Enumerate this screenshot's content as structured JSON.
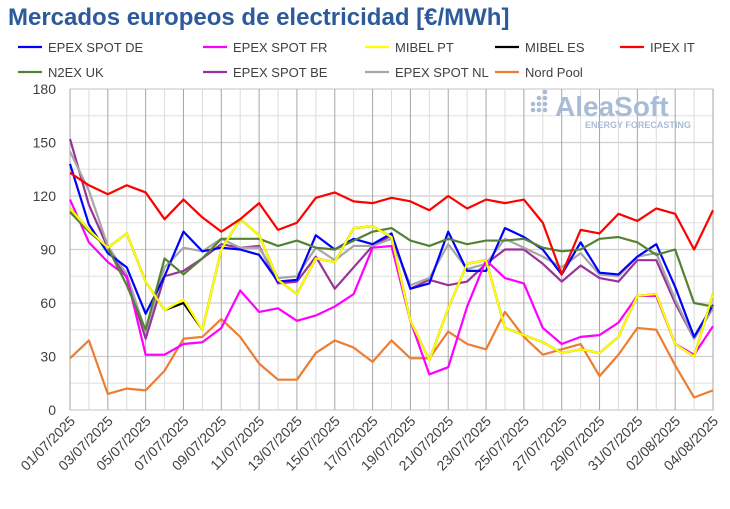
{
  "chart_data": {
    "type": "line",
    "title": "Mercados europeos de electricidad [€/MWh]",
    "watermark": "AleaSoft ENERGY FORECASTING",
    "ylim": [
      0,
      180
    ],
    "yticks": [
      0,
      30,
      60,
      90,
      120,
      150,
      180
    ],
    "grid": true,
    "legend_placement": "top",
    "x": [
      "01/07/2025",
      "02/07/2025",
      "03/07/2025",
      "04/07/2025",
      "05/07/2025",
      "06/07/2025",
      "07/07/2025",
      "08/07/2025",
      "09/07/2025",
      "10/07/2025",
      "11/07/2025",
      "12/07/2025",
      "13/07/2025",
      "14/07/2025",
      "15/07/2025",
      "16/07/2025",
      "17/07/2025",
      "18/07/2025",
      "19/07/2025",
      "20/07/2025",
      "21/07/2025",
      "22/07/2025",
      "23/07/2025",
      "24/07/2025",
      "25/07/2025",
      "26/07/2025",
      "27/07/2025",
      "28/07/2025",
      "29/07/2025",
      "30/07/2025",
      "31/07/2025",
      "01/08/2025",
      "02/08/2025",
      "03/08/2025",
      "04/08/2025"
    ],
    "xtick_labels": [
      "01/07/2025",
      "03/07/2025",
      "05/07/2025",
      "07/07/2025",
      "09/07/2025",
      "11/07/2025",
      "13/07/2025",
      "15/07/2025",
      "17/07/2025",
      "19/07/2025",
      "21/07/2025",
      "23/07/2025",
      "25/07/2025",
      "27/07/2025",
      "29/07/2025",
      "31/07/2025",
      "02/08/2025",
      "04/08/2025"
    ],
    "series": [
      {
        "name": "EPEX SPOT DE",
        "color": "#0000ff",
        "values": [
          138,
          104,
          88,
          80,
          54,
          75,
          100,
          89,
          91,
          90,
          87,
          72,
          73,
          98,
          90,
          96,
          93,
          99,
          68,
          71,
          100,
          78,
          78,
          102,
          97,
          90,
          76,
          94,
          77,
          76,
          86,
          93,
          69,
          41,
          59
        ]
      },
      {
        "name": "EPEX SPOT FR",
        "color": "#ff00ff",
        "values": [
          118,
          94,
          83,
          75,
          31,
          31,
          37,
          38,
          46,
          67,
          55,
          57,
          50,
          53,
          58,
          65,
          91,
          92,
          50,
          20,
          24,
          58,
          84,
          74,
          71,
          46,
          37,
          41,
          42,
          49,
          64,
          64,
          37,
          31,
          47
        ]
      },
      {
        "name": "MIBEL PT",
        "color": "#ffff00",
        "values": [
          113,
          101,
          91,
          99,
          72,
          56,
          62,
          45,
          90,
          107,
          98,
          73,
          65,
          85,
          83,
          102,
          103,
          97,
          50,
          28,
          57,
          82,
          84,
          46,
          42,
          38,
          32,
          34,
          32,
          41,
          64,
          65,
          37,
          30,
          65
        ]
      },
      {
        "name": "MIBEL ES",
        "color": "#000000",
        "values": [
          113,
          101,
          91,
          99,
          72,
          56,
          60,
          45,
          90,
          107,
          98,
          73,
          65,
          85,
          83,
          102,
          103,
          97,
          50,
          28,
          57,
          82,
          84,
          46,
          42,
          38,
          32,
          34,
          32,
          41,
          64,
          65,
          37,
          30,
          65
        ]
      },
      {
        "name": "IPEX IT",
        "color": "#ff0000",
        "values": [
          133,
          126,
          121,
          126,
          122,
          107,
          118,
          108,
          100,
          107,
          116,
          101,
          105,
          119,
          122,
          117,
          116,
          119,
          117,
          112,
          120,
          113,
          118,
          116,
          118,
          105,
          76,
          101,
          99,
          110,
          106,
          113,
          110,
          90,
          112
        ]
      },
      {
        "name": "N2EX UK",
        "color": "#548235",
        "values": [
          111,
          100,
          91,
          70,
          45,
          85,
          76,
          85,
          96,
          96,
          96,
          92,
          95,
          91,
          90,
          95,
          100,
          102,
          95,
          92,
          96,
          93,
          95,
          95,
          96,
          91,
          89,
          90,
          96,
          97,
          94,
          87,
          90,
          60,
          58
        ]
      },
      {
        "name": "EPEX SPOT BE",
        "color": "#993399",
        "values": [
          152,
          115,
          91,
          74,
          40,
          75,
          78,
          85,
          93,
          91,
          92,
          71,
          72,
          86,
          68,
          80,
          92,
          98,
          68,
          73,
          70,
          72,
          82,
          90,
          90,
          82,
          72,
          81,
          74,
          72,
          84,
          84,
          60,
          40,
          57
        ]
      },
      {
        "name": "EPEX SPOT NL",
        "color": "#a6a6a6",
        "values": [
          145,
          123,
          92,
          76,
          44,
          80,
          91,
          89,
          96,
          91,
          91,
          74,
          75,
          91,
          84,
          92,
          92,
          96,
          70,
          74,
          93,
          79,
          82,
          96,
          91,
          86,
          80,
          88,
          76,
          75,
          86,
          88,
          62,
          40,
          57
        ]
      },
      {
        "name": "Nord Pool",
        "color": "#ed7d31",
        "values": [
          29,
          39,
          9,
          12,
          11,
          22,
          40,
          41,
          51,
          41,
          26,
          17,
          17,
          32,
          39,
          35,
          27,
          39,
          29,
          29,
          44,
          37,
          34,
          55,
          41,
          31,
          34,
          37,
          19,
          31,
          46,
          45,
          25,
          7,
          11
        ]
      }
    ]
  }
}
